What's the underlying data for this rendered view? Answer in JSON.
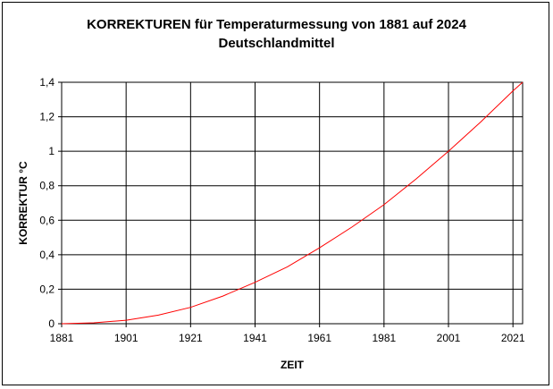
{
  "chart_data": {
    "type": "line",
    "title": "KORREKTUREN für Temperaturmessung von 1881 auf 2024",
    "subtitle": "Deutschlandmittel",
    "xlabel": "ZEIT",
    "ylabel": "KORREKTUR °C",
    "xlim": [
      1881,
      2024
    ],
    "ylim": [
      0,
      1.4
    ],
    "x_ticks": [
      "1881",
      "1901",
      "1921",
      "1941",
      "1961",
      "1981",
      "2001",
      "2021"
    ],
    "y_ticks": [
      "0",
      "0,2",
      "0,4",
      "0,6",
      "0,8",
      "1",
      "1,2",
      "1,4"
    ],
    "grid": true,
    "legend": "none",
    "series": [
      {
        "color": "#ff0000",
        "x": [
          1881,
          1891,
          1901,
          1911,
          1921,
          1931,
          1941,
          1951,
          1961,
          1971,
          1981,
          1991,
          2001,
          2011,
          2021,
          2024
        ],
        "values": [
          0,
          0.005,
          0.02,
          0.05,
          0.095,
          0.16,
          0.24,
          0.33,
          0.44,
          0.56,
          0.69,
          0.84,
          1.0,
          1.17,
          1.35,
          1.4
        ]
      }
    ]
  }
}
